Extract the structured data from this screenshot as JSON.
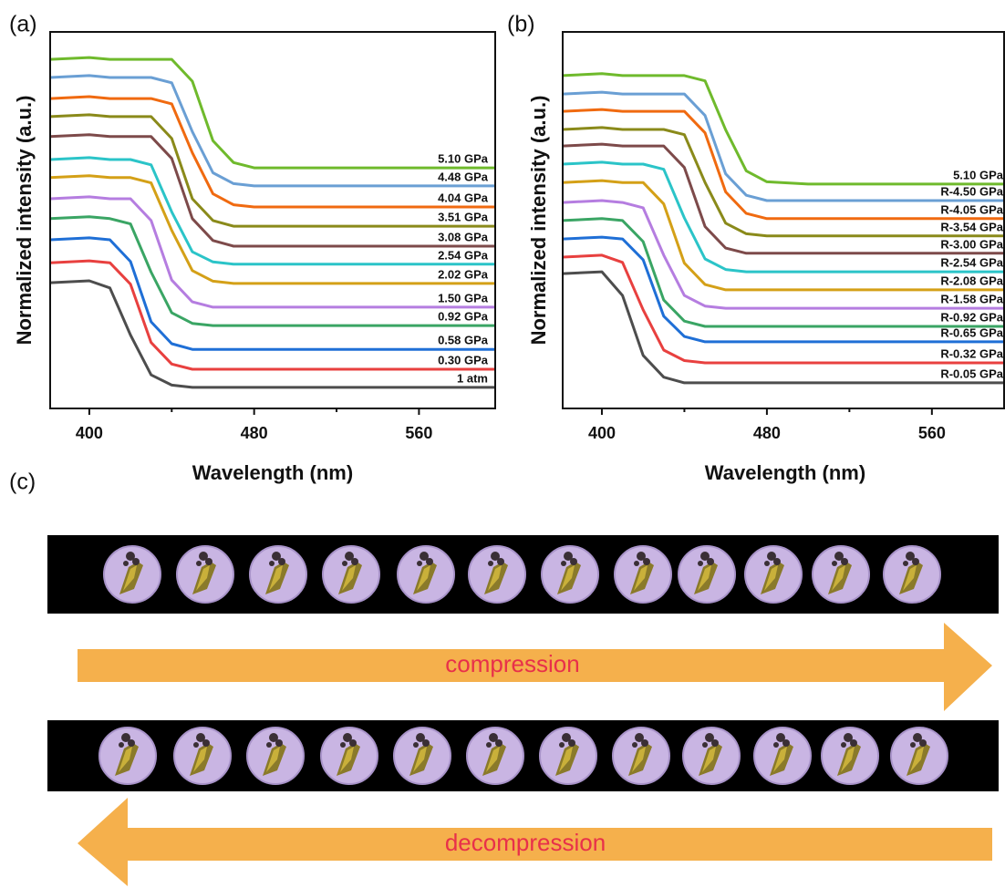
{
  "chart_data": [
    {
      "type": "line",
      "panel_label": "(a)",
      "xlabel": "Wavelength (nm)",
      "ylabel": "Normalized intensity (a.u.)",
      "x": [
        381,
        400,
        410,
        420,
        430,
        440,
        450,
        460,
        470,
        480,
        500,
        597
      ],
      "xlim": [
        381,
        597
      ],
      "xticks": [
        400,
        480,
        560
      ],
      "xminor_ticks": [
        440,
        520
      ],
      "ylim": [
        0,
        100
      ],
      "grid": false,
      "series": [
        {
          "name": "1 atm",
          "color": "#4d4d4d",
          "values": [
            33.4,
            33.9,
            32.0,
            19.5,
            8.9,
            6.2,
            5.6,
            5.6,
            5.6,
            5.6,
            5.6,
            5.6
          ]
        },
        {
          "name": "0.30 GPa",
          "color": "#e8403f",
          "values": [
            38.7,
            39.2,
            38.7,
            33.0,
            17.5,
            11.8,
            10.4,
            10.4,
            10.4,
            10.4,
            10.4,
            10.4
          ]
        },
        {
          "name": "0.58 GPa",
          "color": "#1f6fd6",
          "values": [
            44.8,
            45.3,
            44.8,
            39.0,
            23.0,
            17.2,
            15.7,
            15.7,
            15.7,
            15.7,
            15.7,
            15.7
          ]
        },
        {
          "name": "0.92 GPa",
          "color": "#3aa564",
          "values": [
            50.4,
            50.9,
            50.4,
            49.0,
            36.2,
            25.4,
            22.6,
            22.0,
            22.0,
            22.0,
            22.0,
            22.0
          ]
        },
        {
          "name": "1.50 GPa",
          "color": "#b57de0",
          "values": [
            55.7,
            56.2,
            55.7,
            55.7,
            49.9,
            34.1,
            28.3,
            26.9,
            26.9,
            26.9,
            26.9,
            26.9
          ]
        },
        {
          "name": "2.02 GPa",
          "color": "#d4a017",
          "values": [
            61.3,
            61.8,
            61.3,
            61.3,
            59.9,
            47.3,
            36.6,
            33.8,
            33.2,
            33.2,
            33.2,
            33.2
          ]
        },
        {
          "name": "2.54 GPa",
          "color": "#2bc4c8",
          "values": [
            66.1,
            66.6,
            66.1,
            66.1,
            64.7,
            52.2,
            41.6,
            38.9,
            38.3,
            38.3,
            38.3,
            38.3
          ]
        },
        {
          "name": "3.08 GPa",
          "color": "#7d4a4a",
          "values": [
            72.2,
            72.7,
            72.2,
            72.2,
            72.2,
            66.4,
            50.4,
            44.6,
            43.1,
            43.1,
            43.1,
            43.1
          ]
        },
        {
          "name": "3.51 GPa",
          "color": "#8a8a1a",
          "values": [
            77.5,
            78.0,
            77.5,
            77.5,
            77.5,
            71.7,
            55.7,
            49.9,
            48.4,
            48.4,
            48.4,
            48.4
          ]
        },
        {
          "name": "4.04 GPa",
          "color": "#f06a10",
          "values": [
            82.3,
            82.8,
            82.3,
            82.3,
            82.3,
            80.9,
            67.9,
            57.0,
            54.1,
            53.5,
            53.5,
            53.5
          ]
        },
        {
          "name": "4.48 GPa",
          "color": "#6a9fd4",
          "values": [
            87.9,
            88.4,
            87.9,
            87.9,
            87.9,
            86.5,
            73.5,
            62.6,
            59.7,
            59.1,
            59.1,
            59.1
          ]
        },
        {
          "name": "5.10 GPa",
          "color": "#6fba2c",
          "values": [
            92.7,
            93.2,
            92.7,
            92.7,
            92.7,
            92.7,
            86.9,
            71.1,
            65.3,
            63.9,
            63.9,
            63.9
          ]
        }
      ]
    },
    {
      "type": "line",
      "panel_label": "(b)",
      "xlabel": "Wavelength (nm)",
      "ylabel": "Normalized intensity (a.u.)",
      "x": [
        381,
        400,
        410,
        420,
        430,
        440,
        450,
        460,
        470,
        480,
        500,
        595
      ],
      "xlim": [
        381,
        595
      ],
      "xticks": [
        400,
        480,
        560
      ],
      "xminor_ticks": [
        440,
        520
      ],
      "ylim": [
        0,
        100
      ],
      "grid": false,
      "series": [
        {
          "name": "R-0.05 GPa",
          "color": "#4d4d4d",
          "values": [
            35.8,
            36.3,
            30.0,
            14.1,
            8.3,
            6.8,
            6.8,
            6.8,
            6.8,
            6.8,
            6.8,
            6.8
          ]
        },
        {
          "name": "R-0.32 GPa",
          "color": "#e8403f",
          "values": [
            40.2,
            40.7,
            38.8,
            26.2,
            15.5,
            12.7,
            12.1,
            12.1,
            12.1,
            12.1,
            12.1,
            12.1
          ]
        },
        {
          "name": "R-0.65 GPa",
          "color": "#1f6fd6",
          "values": [
            45.0,
            45.5,
            45.0,
            39.5,
            24.5,
            19.1,
            17.7,
            17.7,
            17.7,
            17.7,
            17.7,
            17.7
          ]
        },
        {
          "name": "R-0.92 GPa",
          "color": "#3aa564",
          "values": [
            49.9,
            50.4,
            49.9,
            44.3,
            28.8,
            23.2,
            21.8,
            21.8,
            21.8,
            21.8,
            21.8,
            21.8
          ]
        },
        {
          "name": "R-1.58 GPa",
          "color": "#b57de0",
          "values": [
            54.7,
            55.2,
            54.7,
            53.3,
            40.7,
            30.0,
            27.2,
            26.6,
            26.6,
            26.6,
            26.6,
            26.6
          ]
        },
        {
          "name": "R-2.08 GPa",
          "color": "#d4a017",
          "values": [
            60.0,
            60.5,
            60.0,
            60.0,
            54.3,
            38.6,
            32.9,
            31.5,
            31.5,
            31.5,
            31.5,
            31.5
          ]
        },
        {
          "name": "R-2.54 GPa",
          "color": "#2bc4c8",
          "values": [
            64.9,
            65.4,
            64.9,
            64.9,
            63.5,
            50.6,
            39.7,
            36.9,
            36.3,
            36.3,
            36.3,
            36.3
          ]
        },
        {
          "name": "R-3.00 GPa",
          "color": "#7d4a4a",
          "values": [
            69.7,
            70.2,
            69.7,
            69.7,
            69.7,
            64.0,
            48.3,
            42.6,
            41.2,
            41.2,
            41.2,
            41.2
          ]
        },
        {
          "name": "R-3.54 GPa",
          "color": "#8a8a1a",
          "values": [
            74.1,
            74.6,
            74.1,
            74.1,
            74.1,
            72.7,
            60.0,
            49.2,
            46.4,
            45.8,
            45.8,
            45.8
          ]
        },
        {
          "name": "R-4.05 GPa",
          "color": "#f06a10",
          "values": [
            78.9,
            79.4,
            78.9,
            78.9,
            78.9,
            78.9,
            73.2,
            57.5,
            51.8,
            50.4,
            50.4,
            50.4
          ]
        },
        {
          "name": "R-4.50 GPa",
          "color": "#6a9fd4",
          "values": [
            83.5,
            84.0,
            83.5,
            83.5,
            83.5,
            83.5,
            77.8,
            62.3,
            56.6,
            55.2,
            55.2,
            55.2
          ]
        },
        {
          "name": "5.10 GPa",
          "color": "#6fba2c",
          "values": [
            88.4,
            88.9,
            88.4,
            88.4,
            88.4,
            88.4,
            87.0,
            74.0,
            63.1,
            60.2,
            59.6,
            59.6
          ]
        }
      ]
    }
  ],
  "figure": {
    "panel_label": "(c)",
    "compression": "compression",
    "decompression": "decompression"
  }
}
